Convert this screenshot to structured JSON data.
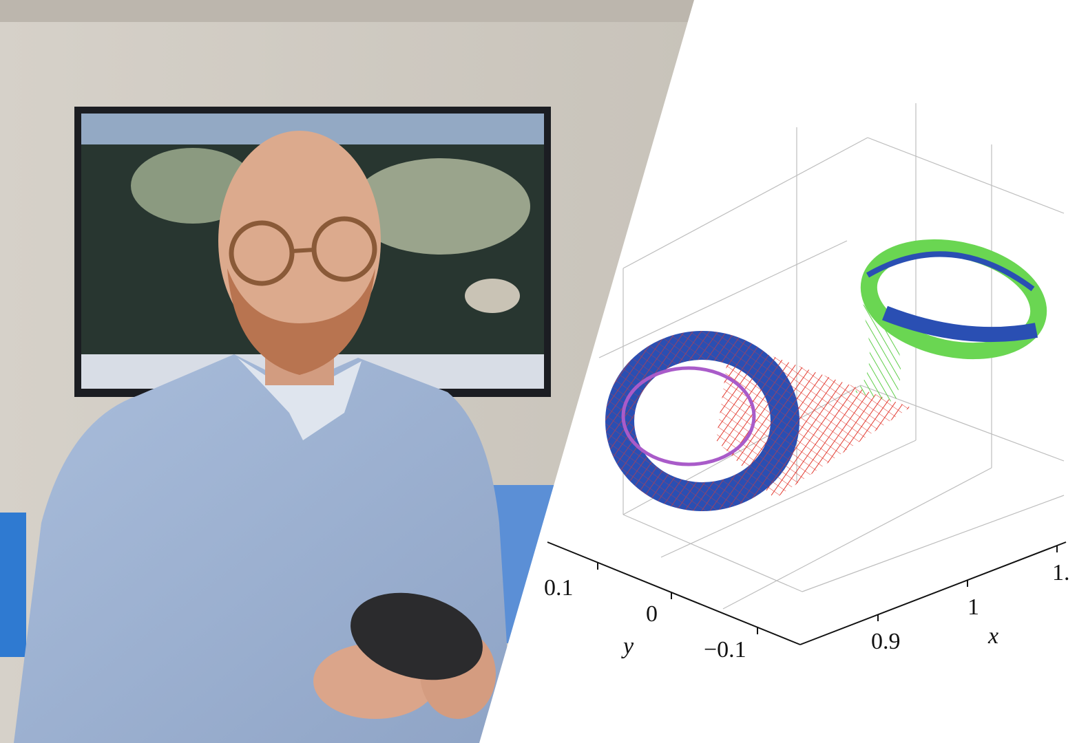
{
  "plot": {
    "y_axis": {
      "label": "y",
      "ticks": [
        "0.1",
        "0",
        "−0.1"
      ]
    },
    "x_axis": {
      "label": "x",
      "ticks": [
        "0.9",
        "1",
        "1."
      ]
    }
  }
}
